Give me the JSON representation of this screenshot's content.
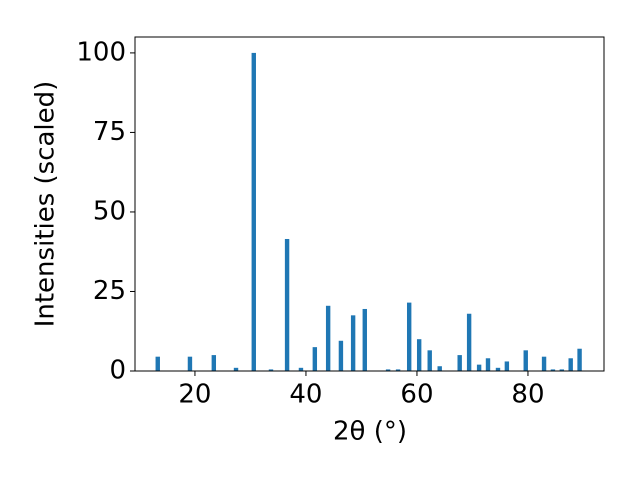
{
  "chart_data": {
    "type": "bar",
    "x_label": "2θ (°)",
    "y_label": "Intensities (scaled)",
    "x": [
      13.3,
      19.1,
      23.4,
      27.4,
      30.6,
      33.7,
      36.6,
      39.1,
      41.6,
      44.0,
      46.3,
      48.5,
      50.6,
      54.8,
      56.6,
      58.6,
      60.4,
      62.3,
      64.1,
      67.7,
      69.4,
      71.2,
      72.8,
      74.6,
      76.2,
      79.6,
      82.9,
      84.5,
      86.1,
      87.7,
      89.3
    ],
    "values": [
      4.5,
      4.5,
      5,
      1,
      100,
      0.5,
      41.5,
      1,
      7.5,
      20.5,
      9.5,
      17.5,
      19.5,
      0.5,
      0.5,
      21.5,
      10,
      6.5,
      1.5,
      5,
      18,
      2,
      4,
      1,
      3,
      6.5,
      4.5,
      0.5,
      0.5,
      4,
      7
    ],
    "color": "#1f77b4",
    "xlim": [
      9.2,
      93.7
    ],
    "xticks": [
      20,
      40,
      60,
      80
    ],
    "ylim": [
      0,
      105
    ],
    "yticks": [
      0,
      25,
      50,
      75,
      100
    ]
  }
}
